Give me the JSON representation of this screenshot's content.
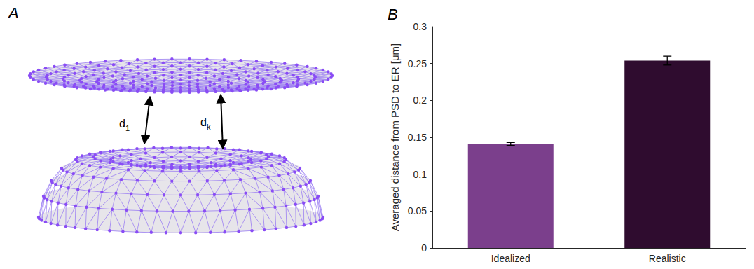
{
  "panel_a": {
    "letter": "A",
    "distance_labels": [
      {
        "symbol": "d",
        "subscript": "1"
      },
      {
        "symbol": "d",
        "subscript": "k"
      }
    ]
  },
  "chart_data": {
    "type": "bar",
    "letter": "B",
    "y_label": "Averaged distance from PSD to ER [μm]",
    "categories": [
      "Idealized",
      "Realistic"
    ],
    "values": [
      0.141,
      0.254
    ],
    "errors": [
      0.002,
      0.006
    ],
    "colors": [
      "#7b3f8c",
      "#2f0c2f"
    ],
    "ylim": [
      0,
      0.3
    ],
    "yticks": [
      0,
      0.05,
      0.1,
      0.15,
      0.2,
      0.25,
      0.3
    ],
    "grid": false
  }
}
